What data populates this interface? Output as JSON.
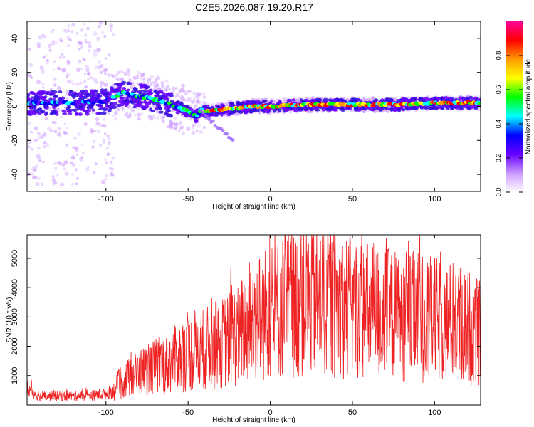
{
  "title": "C2E5.2026.087.19.20.R17",
  "chart_data": [
    {
      "type": "heatmap",
      "title": "C2E5.2026.087.19.20.R17",
      "xlabel": "Height of straight line (km)",
      "ylabel": "Frequency (Hz)",
      "xlim": [
        -148,
        128
      ],
      "ylim": [
        -50,
        50
      ],
      "xticks": [
        "-100",
        "-50",
        "0",
        "50",
        "100"
      ],
      "yticks": [
        "-40",
        "-20",
        "0",
        "20",
        "40"
      ],
      "colorbar": {
        "label": "Normalized spectral amplitude",
        "range": [
          0,
          1
        ],
        "ticks": [
          "0.0",
          "0.2",
          "0.4",
          "0.6",
          "0.8"
        ],
        "colors": [
          "#ffffff",
          "#cc99ff",
          "#6600ff",
          "#0000ff",
          "#00ffff",
          "#00ff00",
          "#ffff00",
          "#ff9900",
          "#ff0000",
          "#ff0099"
        ]
      },
      "ridge": {
        "x": [
          -148,
          -120,
          -100,
          -90,
          -80,
          -70,
          -60,
          -55,
          -50,
          -45,
          -42,
          -40,
          -30,
          -20,
          -10,
          0,
          20,
          40,
          60,
          80,
          100,
          128
        ],
        "freq": [
          2,
          2,
          3,
          8,
          6,
          4,
          1,
          -1,
          -3,
          -6,
          -2,
          -3,
          -2,
          -1,
          0,
          0,
          1,
          1,
          1,
          1,
          2,
          2
        ]
      }
    },
    {
      "type": "line",
      "xlabel": "Height of straight line (km)",
      "ylabel": "SNR (10 * v/v)",
      "xlim": [
        -148,
        128
      ],
      "ylim": [
        0,
        5800
      ],
      "xticks": [
        "-100",
        "-50",
        "0",
        "50",
        "100"
      ],
      "yticks": [
        "1000",
        "2000",
        "3000",
        "4000",
        "5000"
      ],
      "line_color": "#ee2222",
      "envelope": {
        "x": [
          -148,
          -140,
          -125,
          -110,
          -100,
          -95,
          -90,
          -80,
          -70,
          -60,
          -50,
          -40,
          -30,
          -20,
          -10,
          0,
          10,
          20,
          30,
          40,
          50,
          60,
          70,
          80,
          90,
          100,
          110,
          120,
          128
        ],
        "y": [
          550,
          300,
          300,
          320,
          380,
          500,
          800,
          1100,
          1300,
          1500,
          1750,
          1900,
          2100,
          2400,
          2900,
          3200,
          3400,
          3550,
          3500,
          3400,
          3350,
          3200,
          3100,
          3000,
          3000,
          2900,
          2800,
          2700,
          2400
        ]
      },
      "peaks": [
        {
          "x": 23,
          "y": 5800
        },
        {
          "x": 91,
          "y": 5800
        },
        {
          "x": 25,
          "y": 5300
        },
        {
          "x": 36,
          "y": 5150
        },
        {
          "x": 78,
          "y": 4950
        },
        {
          "x": -24,
          "y": 4700
        }
      ]
    }
  ]
}
